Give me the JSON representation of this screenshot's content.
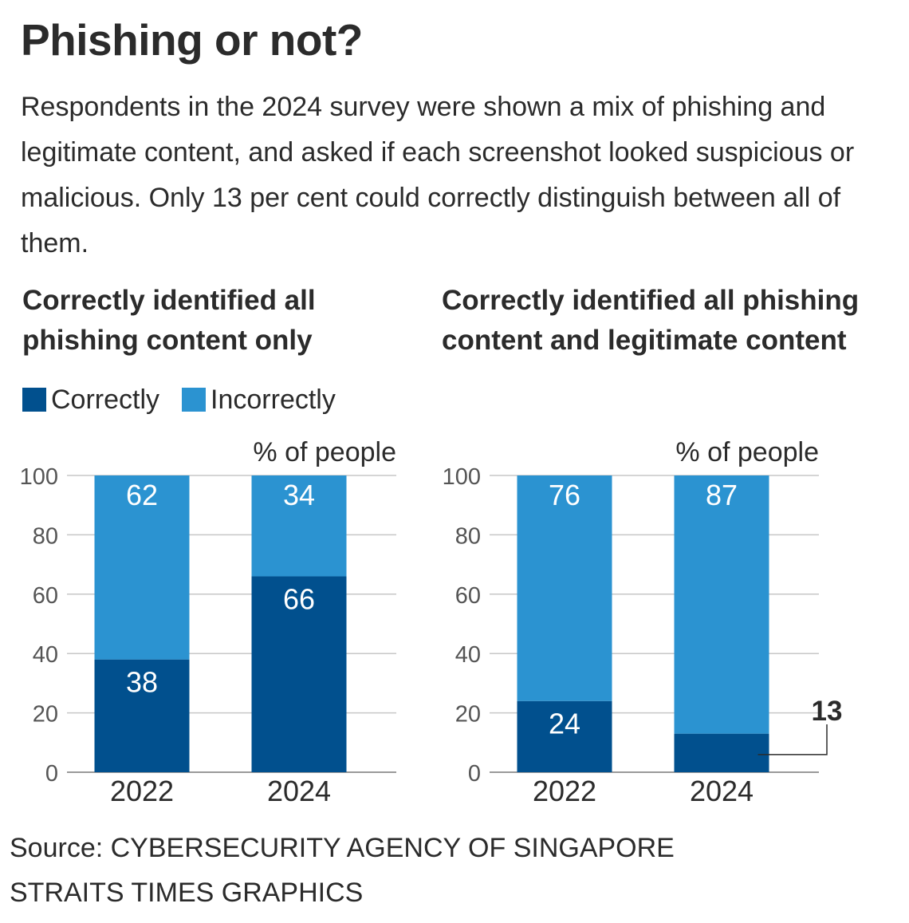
{
  "title": "Phishing or not?",
  "intro": "Respondents in the 2024 survey were shown a mix of phishing and legitimate content, and asked if each screenshot looked suspicious or malicious. Only 13 per cent could correctly distinguish between all of them.",
  "legend": {
    "correct_label": "Correctly",
    "incorrect_label": "Incorrectly"
  },
  "colors": {
    "correct": "#01508e",
    "incorrect": "#2b93d1",
    "grid": "#c7c7c7",
    "text": "#2b2b2b"
  },
  "footer": {
    "source": "Source: CYBERSECURITY AGENCY OF SINGAPORE",
    "credit": "STRAITS TIMES GRAPHICS"
  },
  "chart_data": [
    {
      "type": "bar",
      "stacked": true,
      "title": "Correctly identified all phishing content only",
      "ylabel": "% of people",
      "ylim": [
        0,
        100
      ],
      "yticks": [
        "0",
        "20",
        "40",
        "60",
        "80",
        "100"
      ],
      "categories": [
        "2022",
        "2024"
      ],
      "series": [
        {
          "name": "Correctly",
          "values": [
            38,
            66
          ]
        },
        {
          "name": "Incorrectly",
          "values": [
            62,
            34
          ]
        }
      ],
      "callout": null
    },
    {
      "type": "bar",
      "stacked": true,
      "title": "Correctly identified all phishing content and legitimate content",
      "ylabel": "% of people",
      "ylim": [
        0,
        100
      ],
      "yticks": [
        "0",
        "20",
        "40",
        "60",
        "80",
        "100"
      ],
      "categories": [
        "2022",
        "2024"
      ],
      "series": [
        {
          "name": "Correctly",
          "values": [
            24,
            13
          ]
        },
        {
          "name": "Incorrectly",
          "values": [
            76,
            87
          ]
        }
      ],
      "callout": "13"
    }
  ]
}
